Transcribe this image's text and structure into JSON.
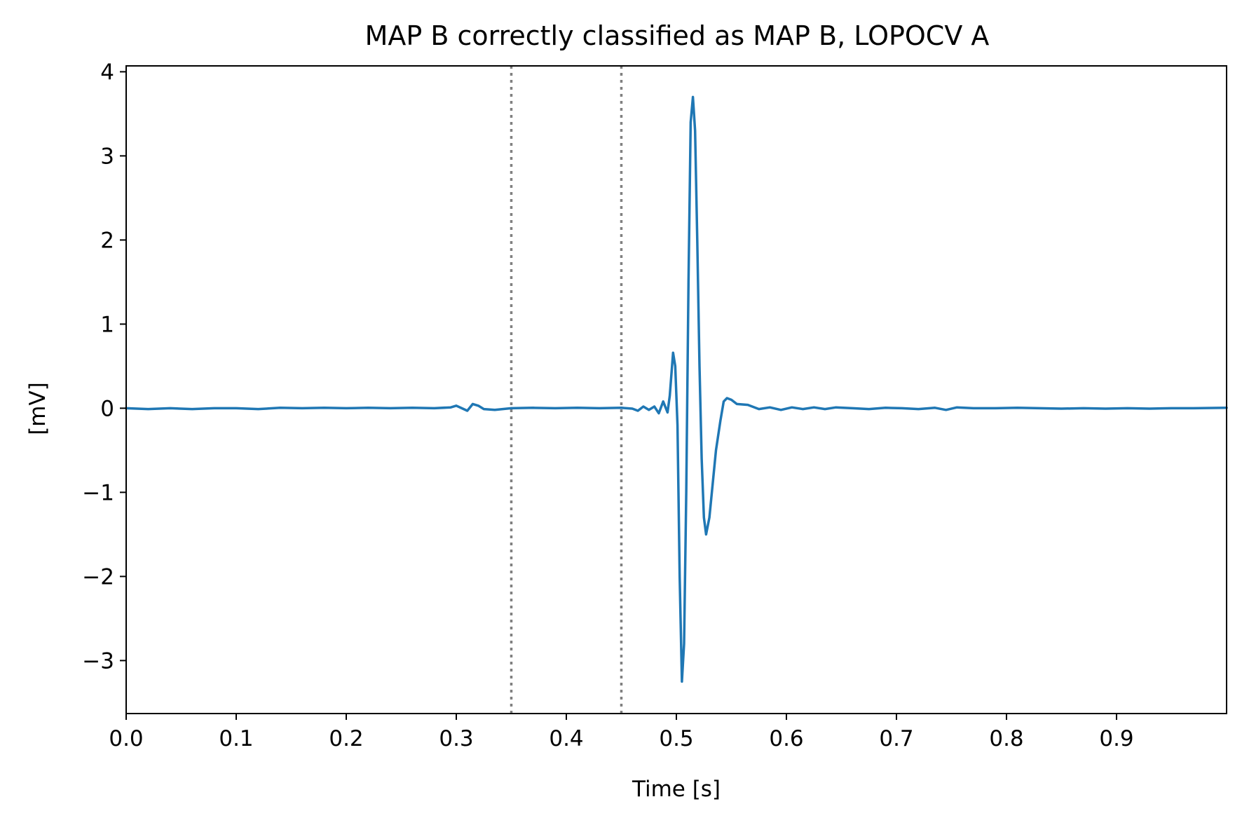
{
  "chart_data": {
    "type": "line",
    "title": "MAP B correctly classified as MAP B, LOPOCV A",
    "xlabel": "Time [s]",
    "ylabel": "[mV]",
    "xlim": [
      0.0,
      1.0
    ],
    "ylim": [
      -3.63,
      4.07
    ],
    "x_ticks": [
      0.0,
      0.1,
      0.2,
      0.3,
      0.4,
      0.5,
      0.6,
      0.7,
      0.8,
      0.9
    ],
    "x_tick_labels": [
      "0.0",
      "0.1",
      "0.2",
      "0.3",
      "0.4",
      "0.5",
      "0.6",
      "0.7",
      "0.8",
      "0.9"
    ],
    "y_ticks": [
      -3,
      -2,
      -1,
      0,
      1,
      2,
      3,
      4
    ],
    "y_tick_labels": [
      "−3",
      "−2",
      "−1",
      "0",
      "1",
      "2",
      "3",
      "4"
    ],
    "grid": false,
    "reference_lines": [
      {
        "orientation": "vertical",
        "x": 0.35,
        "style": "dotted",
        "color": "#808080"
      },
      {
        "orientation": "vertical",
        "x": 0.45,
        "style": "dotted",
        "color": "#808080"
      }
    ],
    "series": [
      {
        "color": "#1f77b4",
        "points": [
          [
            0.0,
            0.0
          ],
          [
            0.02,
            -0.01
          ],
          [
            0.04,
            0.0
          ],
          [
            0.06,
            -0.01
          ],
          [
            0.08,
            0.0
          ],
          [
            0.1,
            0.0
          ],
          [
            0.12,
            -0.01
          ],
          [
            0.14,
            0.005
          ],
          [
            0.16,
            0.0
          ],
          [
            0.18,
            0.005
          ],
          [
            0.2,
            0.0
          ],
          [
            0.22,
            0.005
          ],
          [
            0.24,
            0.0
          ],
          [
            0.26,
            0.005
          ],
          [
            0.28,
            0.0
          ],
          [
            0.295,
            0.01
          ],
          [
            0.3,
            0.03
          ],
          [
            0.305,
            0.0
          ],
          [
            0.31,
            -0.03
          ],
          [
            0.315,
            0.05
          ],
          [
            0.32,
            0.03
          ],
          [
            0.325,
            -0.01
          ],
          [
            0.335,
            -0.02
          ],
          [
            0.35,
            0.0
          ],
          [
            0.37,
            0.005
          ],
          [
            0.39,
            0.0
          ],
          [
            0.41,
            0.005
          ],
          [
            0.43,
            0.0
          ],
          [
            0.45,
            0.005
          ],
          [
            0.46,
            -0.005
          ],
          [
            0.465,
            -0.03
          ],
          [
            0.47,
            0.02
          ],
          [
            0.475,
            -0.02
          ],
          [
            0.48,
            0.02
          ],
          [
            0.484,
            -0.06
          ],
          [
            0.488,
            0.08
          ],
          [
            0.492,
            -0.05
          ],
          [
            0.494,
            0.15
          ],
          [
            0.497,
            0.66
          ],
          [
            0.499,
            0.5
          ],
          [
            0.501,
            -0.2
          ],
          [
            0.503,
            -2.0
          ],
          [
            0.505,
            -3.25
          ],
          [
            0.507,
            -2.8
          ],
          [
            0.509,
            -1.0
          ],
          [
            0.511,
            1.5
          ],
          [
            0.513,
            3.4
          ],
          [
            0.515,
            3.7
          ],
          [
            0.517,
            3.3
          ],
          [
            0.519,
            2.0
          ],
          [
            0.521,
            0.5
          ],
          [
            0.523,
            -0.6
          ],
          [
            0.525,
            -1.3
          ],
          [
            0.527,
            -1.5
          ],
          [
            0.53,
            -1.3
          ],
          [
            0.533,
            -0.9
          ],
          [
            0.536,
            -0.5
          ],
          [
            0.54,
            -0.15
          ],
          [
            0.543,
            0.08
          ],
          [
            0.546,
            0.12
          ],
          [
            0.55,
            0.1
          ],
          [
            0.555,
            0.05
          ],
          [
            0.565,
            0.04
          ],
          [
            0.575,
            -0.01
          ],
          [
            0.585,
            0.01
          ],
          [
            0.595,
            -0.02
          ],
          [
            0.605,
            0.01
          ],
          [
            0.615,
            -0.01
          ],
          [
            0.625,
            0.01
          ],
          [
            0.635,
            -0.01
          ],
          [
            0.645,
            0.01
          ],
          [
            0.66,
            0.0
          ],
          [
            0.675,
            -0.01
          ],
          [
            0.69,
            0.005
          ],
          [
            0.705,
            0.0
          ],
          [
            0.72,
            -0.01
          ],
          [
            0.735,
            0.005
          ],
          [
            0.745,
            -0.02
          ],
          [
            0.755,
            0.01
          ],
          [
            0.77,
            0.0
          ],
          [
            0.79,
            0.0
          ],
          [
            0.81,
            0.005
          ],
          [
            0.83,
            0.0
          ],
          [
            0.85,
            -0.005
          ],
          [
            0.87,
            0.0
          ],
          [
            0.89,
            -0.005
          ],
          [
            0.91,
            0.0
          ],
          [
            0.93,
            -0.005
          ],
          [
            0.95,
            0.0
          ],
          [
            0.97,
            0.0
          ],
          [
            1.0,
            0.005
          ]
        ]
      }
    ]
  }
}
